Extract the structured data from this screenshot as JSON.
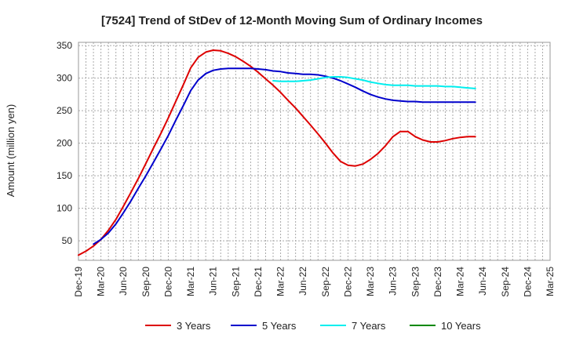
{
  "chart_data": {
    "type": "line",
    "title": "[7524]  Trend of StDev of 12-Month Moving Sum of Ordinary Incomes",
    "xlabel": "",
    "ylabel": "Amount (million yen)",
    "ylim": [
      20,
      355
    ],
    "yticks": [
      50,
      100,
      150,
      200,
      250,
      300,
      350
    ],
    "xlim": [
      0,
      21
    ],
    "x_tick_labels": [
      "Dec-19",
      "Mar-20",
      "Jun-20",
      "Sep-20",
      "Dec-20",
      "Mar-21",
      "Jun-21",
      "Sep-21",
      "Dec-21",
      "Mar-22",
      "Jun-22",
      "Sep-22",
      "Dec-22",
      "Mar-23",
      "Jun-23",
      "Sep-23",
      "Dec-23",
      "Mar-24",
      "Jun-24",
      "Sep-24",
      "Dec-24",
      "Mar-25"
    ],
    "grid": true,
    "legend_position": "bottom",
    "series": [
      {
        "name": "3 Years",
        "color": "#dd0000",
        "points": [
          [
            0,
            28
          ],
          [
            0.33,
            34
          ],
          [
            0.67,
            42
          ],
          [
            1,
            52
          ],
          [
            1.33,
            66
          ],
          [
            1.67,
            83
          ],
          [
            2,
            103
          ],
          [
            2.33,
            124
          ],
          [
            2.67,
            146
          ],
          [
            3,
            169
          ],
          [
            3.33,
            192
          ],
          [
            3.67,
            215
          ],
          [
            4,
            239
          ],
          [
            4.33,
            264
          ],
          [
            4.67,
            290
          ],
          [
            5,
            316
          ],
          [
            5.33,
            332
          ],
          [
            5.67,
            340
          ],
          [
            6,
            343
          ],
          [
            6.33,
            342
          ],
          [
            6.67,
            338
          ],
          [
            7,
            333
          ],
          [
            7.33,
            326
          ],
          [
            7.67,
            318
          ],
          [
            8,
            309
          ],
          [
            8.33,
            299
          ],
          [
            8.67,
            289
          ],
          [
            9,
            278
          ],
          [
            9.33,
            266
          ],
          [
            9.67,
            254
          ],
          [
            10,
            241
          ],
          [
            10.33,
            228
          ],
          [
            10.67,
            214
          ],
          [
            11,
            200
          ],
          [
            11.33,
            185
          ],
          [
            11.67,
            172
          ],
          [
            12,
            166
          ],
          [
            12.33,
            165
          ],
          [
            12.67,
            168
          ],
          [
            13,
            175
          ],
          [
            13.33,
            184
          ],
          [
            13.67,
            196
          ],
          [
            14,
            210
          ],
          [
            14.33,
            218
          ],
          [
            14.67,
            218
          ],
          [
            15,
            210
          ],
          [
            15.33,
            205
          ],
          [
            15.67,
            202
          ],
          [
            16,
            202
          ],
          [
            16.33,
            204
          ],
          [
            16.67,
            207
          ],
          [
            17,
            209
          ],
          [
            17.33,
            210
          ],
          [
            17.67,
            210
          ]
        ]
      },
      {
        "name": "5 Years",
        "color": "#0000cc",
        "points": [
          [
            0.67,
            45
          ],
          [
            1,
            52
          ],
          [
            1.33,
            62
          ],
          [
            1.67,
            76
          ],
          [
            2,
            93
          ],
          [
            2.33,
            111
          ],
          [
            2.67,
            131
          ],
          [
            3,
            150
          ],
          [
            3.33,
            170
          ],
          [
            3.67,
            191
          ],
          [
            4,
            212
          ],
          [
            4.33,
            235
          ],
          [
            4.67,
            258
          ],
          [
            5,
            281
          ],
          [
            5.33,
            297
          ],
          [
            5.67,
            307
          ],
          [
            6,
            312
          ],
          [
            6.33,
            314
          ],
          [
            6.67,
            315
          ],
          [
            7,
            315
          ],
          [
            7.33,
            315
          ],
          [
            7.67,
            315
          ],
          [
            8,
            314
          ],
          [
            8.33,
            313
          ],
          [
            8.67,
            311
          ],
          [
            9,
            310
          ],
          [
            9.33,
            308
          ],
          [
            9.67,
            307
          ],
          [
            10,
            306
          ],
          [
            10.33,
            306
          ],
          [
            10.67,
            305
          ],
          [
            11,
            303
          ],
          [
            11.33,
            300
          ],
          [
            11.67,
            296
          ],
          [
            12,
            291
          ],
          [
            12.33,
            286
          ],
          [
            12.67,
            280
          ],
          [
            13,
            275
          ],
          [
            13.33,
            271
          ],
          [
            13.67,
            268
          ],
          [
            14,
            266
          ],
          [
            14.33,
            265
          ],
          [
            14.67,
            264
          ],
          [
            15,
            264
          ],
          [
            15.33,
            263
          ],
          [
            15.67,
            263
          ],
          [
            16,
            263
          ],
          [
            16.33,
            263
          ],
          [
            16.67,
            263
          ],
          [
            17,
            263
          ],
          [
            17.33,
            263
          ],
          [
            17.67,
            263
          ]
        ]
      },
      {
        "name": "7 Years",
        "color": "#00eeee",
        "points": [
          [
            8.67,
            296
          ],
          [
            9,
            295
          ],
          [
            9.33,
            295
          ],
          [
            9.67,
            295
          ],
          [
            10,
            296
          ],
          [
            10.33,
            297
          ],
          [
            10.67,
            299
          ],
          [
            11,
            301
          ],
          [
            11.33,
            302
          ],
          [
            11.67,
            302
          ],
          [
            12,
            301
          ],
          [
            12.33,
            299
          ],
          [
            12.67,
            297
          ],
          [
            13,
            294
          ],
          [
            13.33,
            292
          ],
          [
            13.67,
            290
          ],
          [
            14,
            289
          ],
          [
            14.33,
            289
          ],
          [
            14.67,
            289
          ],
          [
            15,
            288
          ],
          [
            15.33,
            288
          ],
          [
            15.67,
            288
          ],
          [
            16,
            288
          ],
          [
            16.33,
            287
          ],
          [
            16.67,
            287
          ],
          [
            17,
            286
          ],
          [
            17.33,
            285
          ],
          [
            17.67,
            284
          ]
        ]
      },
      {
        "name": "10 Years",
        "color": "#008800",
        "points": []
      }
    ]
  }
}
